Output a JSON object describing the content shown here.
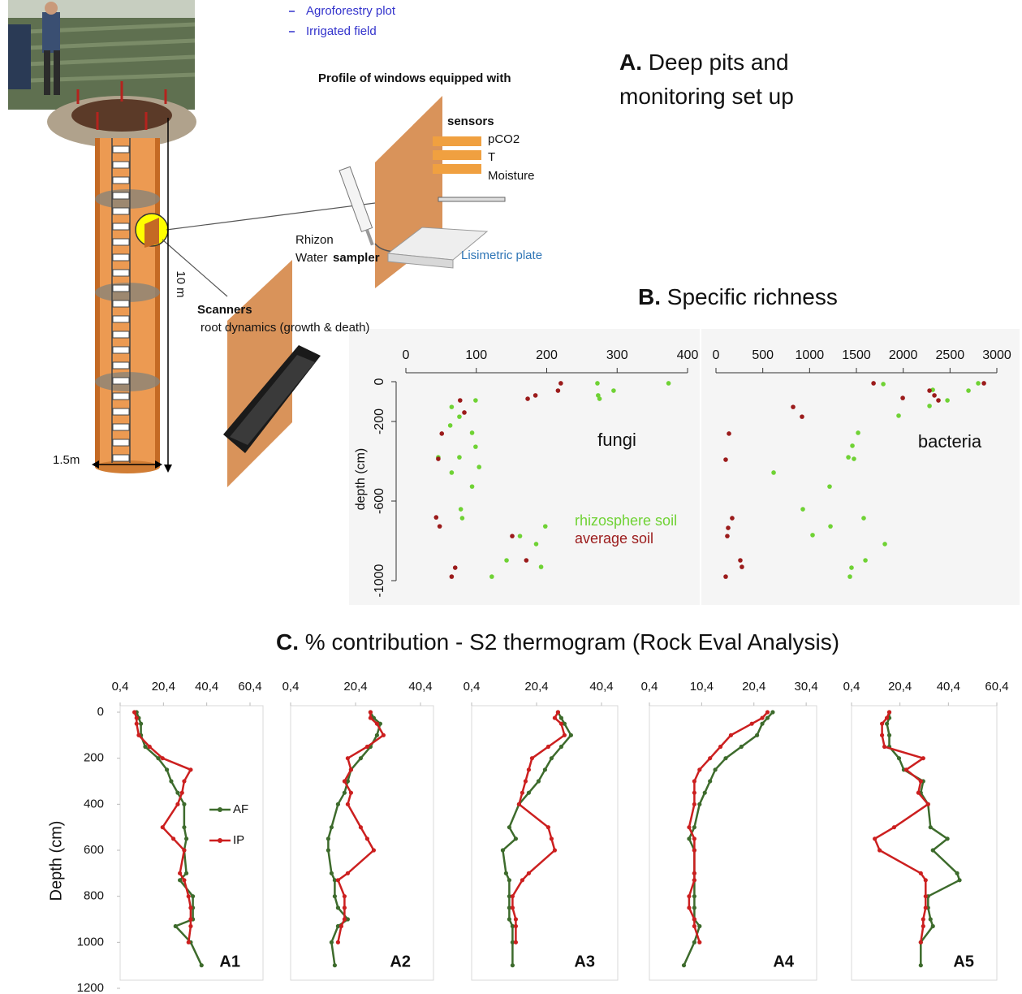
{
  "panels": {
    "A": {
      "label": "A.",
      "title": "Deep pits and monitoring set up"
    },
    "B": {
      "label": "B.",
      "title": "Specific richness"
    },
    "C": {
      "label": "C.",
      "title": "% contribution - S2 thermogram (Rock Eval Analysis)"
    }
  },
  "diagram": {
    "plots": [
      "Agroforestry plot",
      "Irrigated field"
    ],
    "window_title": "Profile of windows equipped with",
    "sensors": "sensors",
    "sensor_list": [
      "pCO2",
      "T",
      "Moisture"
    ],
    "rhizon": "Rhizon",
    "water": "Water",
    "sampler": "sampler",
    "plate": "Lisimetric plate",
    "scanners": "Scanners",
    "scanners_note": "root dynamics (growth & death)",
    "depth": "10 m",
    "diameter": "1.5m"
  },
  "chart_data": [
    {
      "type": "scatter",
      "label": "fungi",
      "ylabel": "depth (cm)",
      "xlim": [
        0,
        400
      ],
      "xticks": [
        0,
        100,
        200,
        300,
        400
      ],
      "ylim": [
        -1000,
        0
      ],
      "yticks": [
        0,
        -200,
        -600,
        -1000
      ],
      "series": [
        {
          "name": "rhizosphere soil",
          "color": "#6fd234",
          "x": [
            373,
            272,
            295,
            273,
            275,
            99,
            65,
            76,
            63,
            94,
            99,
            46,
            76,
            104,
            65,
            94,
            78,
            80,
            198,
            162,
            185,
            143,
            192,
            122
          ],
          "y": [
            -8,
            -8,
            -45,
            -69,
            -86,
            -94,
            -127,
            -176,
            -220,
            -257,
            -327,
            -380,
            -380,
            -429,
            -457,
            -527,
            -641,
            -686,
            -727,
            -776,
            -816,
            -898,
            -931,
            -980
          ]
        },
        {
          "name": "average soil",
          "color": "#9b1b1b",
          "x": [
            220,
            216,
            184,
            173,
            77,
            83,
            51,
            46,
            43,
            48,
            151,
            171,
            70,
            65
          ],
          "y": [
            -8,
            -45,
            -69,
            -86,
            -94,
            -155,
            -261,
            -388,
            -682,
            -727,
            -776,
            -898,
            -935,
            -980
          ]
        }
      ]
    },
    {
      "type": "scatter",
      "label": "bacteria",
      "xlim": [
        0,
        3000
      ],
      "xticks": [
        0,
        500,
        1000,
        1500,
        2000,
        2500,
        3000
      ],
      "ylim": [
        -1000,
        0
      ],
      "series": [
        {
          "color": "#6fd234",
          "x": [
            1787,
            2801,
            2697,
            2472,
            2316,
            2281,
            1951,
            1518,
            1457,
            1414,
            1474,
            616,
            1214,
            928,
            1578,
            1223,
            1032,
            1804,
            1596,
            1448,
            1431
          ],
          "y": [
            -12,
            -8,
            -45,
            -94,
            -41,
            -122,
            -171,
            -257,
            -322,
            -380,
            -388,
            -457,
            -527,
            -641,
            -686,
            -727,
            -771,
            -816,
            -898,
            -935,
            -980
          ]
        },
        {
          "color": "#9b1b1b",
          "x": [
            1683,
            2862,
            2281,
            2333,
            2376,
            1995,
            824,
            919,
            139,
            104,
            173,
            130,
            121,
            260,
            277,
            104
          ],
          "y": [
            -8,
            -8,
            -45,
            -69,
            -94,
            -82,
            -127,
            -176,
            -261,
            -392,
            -686,
            -735,
            -776,
            -898,
            -931,
            -980
          ]
        }
      ]
    },
    {
      "type": "line",
      "label": "A1",
      "ylabel": "Depth (cm)",
      "yreverse": true,
      "xlim": [
        0.4,
        66.4
      ],
      "xticks": [
        {
          "value": 0.4,
          "label": "0,4"
        },
        {
          "value": 20.4,
          "label": "20,4"
        },
        {
          "value": 40.4,
          "label": "40,4"
        },
        {
          "value": 60.4,
          "label": "60,4"
        }
      ],
      "ylim": [
        0,
        1200
      ],
      "yticks": [
        0,
        200,
        400,
        600,
        800,
        1000,
        1200
      ],
      "y": [
        0,
        25,
        50,
        100,
        150,
        200,
        250,
        300,
        350,
        400,
        500,
        550,
        600,
        700,
        730,
        800,
        850,
        900,
        930,
        1000,
        1100
      ],
      "series": [
        {
          "name": "AF",
          "color": "#3d6b2c",
          "values": [
            8,
            9,
            10,
            10,
            12,
            18,
            22,
            24,
            27,
            30,
            30,
            31,
            30,
            31,
            28,
            34,
            34,
            34,
            26,
            33,
            38
          ]
        },
        {
          "name": "IP",
          "color": "#cc1f1f",
          "values": [
            7,
            8,
            8,
            9,
            14,
            20,
            33,
            30,
            29,
            27,
            20,
            25,
            30,
            28,
            30,
            32,
            33,
            33,
            33,
            32,
            null
          ]
        }
      ]
    },
    {
      "type": "line",
      "label": "A2",
      "yreverse": true,
      "xlim": [
        0.4,
        44.4
      ],
      "xticks": [
        {
          "value": 0.4,
          "label": "0,4"
        },
        {
          "value": 20.4,
          "label": "20,4"
        },
        {
          "value": 40.4,
          "label": "40,4"
        }
      ],
      "ylim": [
        0,
        1200
      ],
      "y": [
        0,
        25,
        50,
        100,
        150,
        200,
        250,
        300,
        350,
        400,
        500,
        550,
        600,
        700,
        730,
        800,
        850,
        900,
        930,
        1000,
        1100
      ],
      "series": [
        {
          "color": "#3d6b2c",
          "values": [
            25,
            26,
            28,
            27,
            25,
            22,
            19,
            18,
            17,
            15,
            13,
            12,
            12,
            13,
            14,
            14,
            15,
            18,
            15,
            13,
            14
          ]
        },
        {
          "color": "#cc1f1f",
          "values": [
            25,
            25,
            27,
            29,
            24,
            18,
            19,
            17,
            19,
            18,
            22,
            24,
            26,
            18,
            15,
            17,
            17,
            17,
            16,
            15,
            null
          ]
        }
      ]
    },
    {
      "type": "line",
      "label": "A3",
      "yreverse": true,
      "xlim": [
        0.4,
        45.4
      ],
      "xticks": [
        {
          "value": 0.4,
          "label": "0,4"
        },
        {
          "value": 20.4,
          "label": "20,4"
        },
        {
          "value": 40.4,
          "label": "40,4"
        }
      ],
      "ylim": [
        0,
        1200
      ],
      "y": [
        0,
        25,
        50,
        100,
        150,
        200,
        250,
        300,
        350,
        400,
        500,
        550,
        600,
        700,
        730,
        800,
        850,
        900,
        930,
        1000,
        1100
      ],
      "series": [
        {
          "color": "#3d6b2c",
          "values": [
            27,
            28,
            29,
            31,
            28,
            25,
            23,
            21,
            18,
            15,
            12,
            14,
            10,
            11,
            12,
            12,
            12,
            12,
            13,
            13,
            13
          ]
        },
        {
          "color": "#cc1f1f",
          "values": [
            27,
            26,
            28,
            29,
            24,
            19,
            18,
            17,
            16,
            15,
            24,
            25,
            26,
            18,
            16,
            13,
            13,
            14,
            14,
            14,
            null
          ]
        }
      ]
    },
    {
      "type": "line",
      "label": "A4",
      "yreverse": true,
      "xlim": [
        0.4,
        32.4
      ],
      "xticks": [
        {
          "value": 0.4,
          "label": "0,4"
        },
        {
          "value": 10.4,
          "label": "10,4"
        },
        {
          "value": 20.4,
          "label": "20,4"
        },
        {
          "value": 30.4,
          "label": "30,4"
        }
      ],
      "ylim": [
        0,
        1200
      ],
      "y": [
        0,
        25,
        50,
        100,
        150,
        200,
        250,
        300,
        350,
        400,
        500,
        550,
        600,
        700,
        730,
        800,
        850,
        900,
        930,
        1000,
        1100
      ],
      "series": [
        {
          "color": "#3d6b2c",
          "values": [
            24,
            23,
            22,
            21,
            18,
            15,
            13,
            12,
            11,
            10,
            9,
            8,
            9,
            9,
            9,
            9,
            9,
            9,
            10,
            9,
            7
          ]
        },
        {
          "color": "#cc1f1f",
          "values": [
            23,
            22,
            20,
            16,
            14,
            12,
            10,
            9,
            9,
            9,
            8,
            9,
            9,
            9,
            9,
            8,
            8,
            9,
            9,
            10,
            null
          ]
        }
      ]
    },
    {
      "type": "line",
      "label": "A5",
      "yreverse": true,
      "xlim": [
        0.4,
        60.4
      ],
      "xticks": [
        {
          "value": 0.4,
          "label": "0,4"
        },
        {
          "value": 20.4,
          "label": "20,4"
        },
        {
          "value": 40.4,
          "label": "40,4"
        },
        {
          "value": 60.4,
          "label": "60,4"
        }
      ],
      "ylim": [
        0,
        1200
      ],
      "y": [
        0,
        25,
        50,
        100,
        150,
        200,
        250,
        300,
        350,
        400,
        500,
        550,
        600,
        700,
        730,
        800,
        850,
        900,
        930,
        1000,
        1100
      ],
      "series": [
        {
          "color": "#3d6b2c",
          "values": [
            16,
            16,
            15,
            16,
            16,
            20,
            22,
            30,
            29,
            32,
            33,
            40,
            34,
            44,
            45,
            32,
            32,
            33,
            34,
            29,
            29
          ]
        },
        {
          "color": "#cc1f1f",
          "values": [
            16,
            15,
            13,
            13,
            14,
            30,
            23,
            29,
            28,
            32,
            18,
            10,
            12,
            29,
            31,
            31,
            31,
            30,
            30,
            29,
            null
          ]
        }
      ]
    }
  ]
}
